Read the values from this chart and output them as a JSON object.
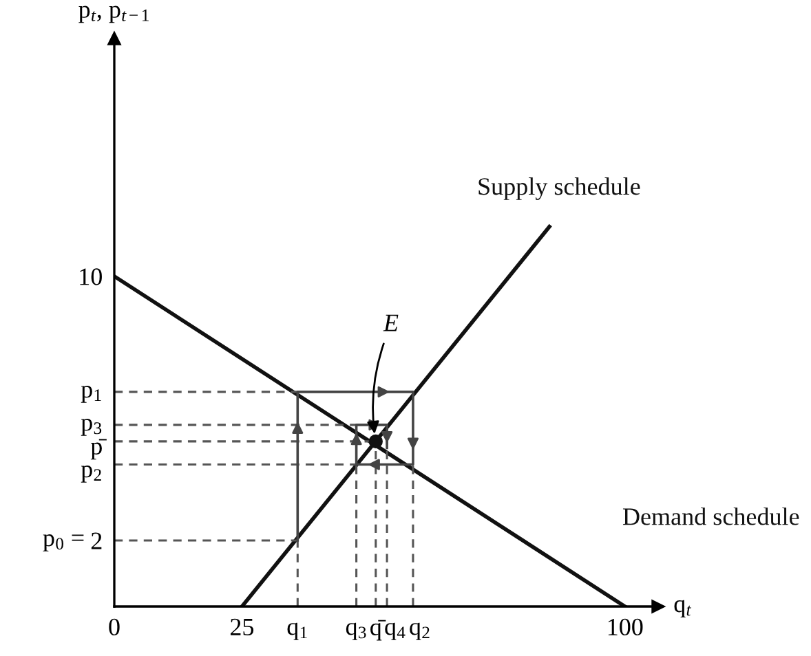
{
  "chart_data": {
    "type": "line",
    "xlabel": "q$_{t}$",
    "ylabel": "p$_{t}$, p$_{t−1}$",
    "xlim": [
      0,
      106.5
    ],
    "ylim": [
      0,
      17.2
    ],
    "xticks": [
      0,
      25,
      100
    ],
    "yticks": [
      2,
      10
    ],
    "grid": false,
    "legend": false,
    "series": [
      {
        "name": "Supply schedule",
        "color": "#111111",
        "line_style": "solid",
        "x": [
          25,
          85.2
        ],
        "values": [
          0,
          11.5
        ]
      },
      {
        "name": "Demand schedule",
        "color": "#111111",
        "line_style": "solid",
        "x": [
          0,
          100
        ],
        "values": [
          10,
          0
        ]
      },
      {
        "color": "#555555",
        "line_style": "dashed",
        "x": [
          0,
          35.9
        ],
        "values": [
          6.5,
          6.5
        ]
      },
      {
        "color": "#555555",
        "line_style": "dashed",
        "x": [
          0,
          47.4
        ],
        "values": [
          5.5,
          5.5
        ]
      },
      {
        "color": "#555555",
        "line_style": "dashed",
        "x": [
          0,
          51.2
        ],
        "values": [
          5.0,
          5.0
        ]
      },
      {
        "color": "#555555",
        "line_style": "dashed",
        "x": [
          0,
          47.4
        ],
        "values": [
          4.3,
          4.3
        ]
      },
      {
        "color": "#555555",
        "line_style": "dashed",
        "x": [
          0,
          35.9
        ],
        "values": [
          2,
          2
        ]
      },
      {
        "color": "#555555",
        "line_style": "dashed",
        "x": [
          35.9,
          35.9
        ],
        "values": [
          0,
          2
        ]
      },
      {
        "color": "#555555",
        "line_style": "dashed",
        "x": [
          47.4,
          47.4
        ],
        "values": [
          0,
          4.3
        ]
      },
      {
        "color": "#555555",
        "line_style": "dashed",
        "x": [
          51.2,
          51.2
        ],
        "values": [
          0,
          5.0
        ]
      },
      {
        "color": "#555555",
        "line_style": "dashed",
        "x": [
          53.4,
          53.4
        ],
        "values": [
          0,
          5.5
        ]
      },
      {
        "color": "#555555",
        "line_style": "dashed",
        "x": [
          58.5,
          58.5
        ],
        "values": [
          0,
          4.3
        ]
      },
      {
        "color": "#444444",
        "line_style": "solid",
        "x": [
          35.9,
          35.9,
          58.5,
          58.5,
          47.4,
          47.4,
          53.4,
          53.4
        ],
        "values": [
          2,
          6.5,
          6.5,
          4.3,
          4.3,
          5.5,
          5.5,
          4.8
        ]
      },
      {
        "type": "scatter",
        "color": "#111111",
        "marker": "circle",
        "x": [
          51.2
        ],
        "values": [
          5.0
        ]
      }
    ],
    "annotations": [
      {
        "text": "E",
        "x": 51.2,
        "y": 5.0
      },
      {
        "text": "q$_{1}$",
        "x": 35.9,
        "y": 0
      },
      {
        "text": "q$_{3}$",
        "x": 47.4,
        "y": 0
      },
      {
        "text": "q̄",
        "x": 51.2,
        "y": 0
      },
      {
        "text": "q$_{4}$",
        "x": 53.4,
        "y": 0
      },
      {
        "text": "q$_{2}$",
        "x": 58.5,
        "y": 0
      },
      {
        "text": "p$_{1}$",
        "x": 0,
        "y": 6.5
      },
      {
        "text": "p$_{3}$",
        "x": 0,
        "y": 5.5
      },
      {
        "text": "p̄",
        "x": 0,
        "y": 5.0
      },
      {
        "text": "p$_{2}$",
        "x": 0,
        "y": 4.3
      },
      {
        "text": "p$_{0}$ =",
        "x": 0,
        "y": 2
      }
    ]
  }
}
